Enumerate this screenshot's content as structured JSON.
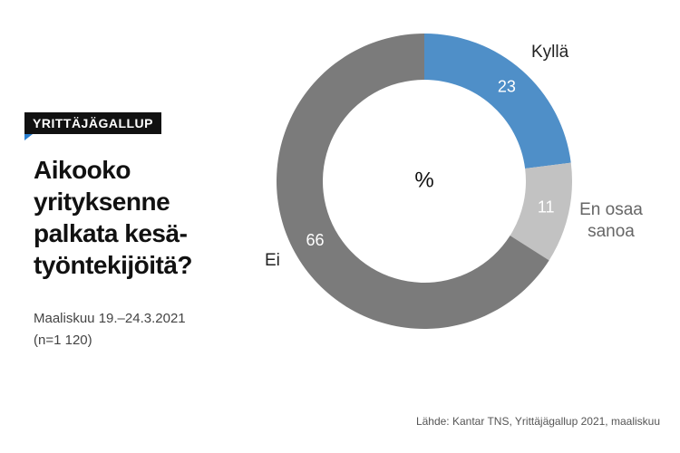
{
  "badge": "YRITTÄJÄGALLUP",
  "title_lines": [
    "Aikooko",
    "yrityksenne",
    "palkata kesä-",
    "työntekijöitä?"
  ],
  "subtitle_lines": [
    "Maaliskuu 19.–24.3.2021",
    "(n=1 120)"
  ],
  "source": "Lähde: Kantar TNS, Yrittäjägallup 2021, maaliskuu",
  "chart_data": {
    "type": "donut",
    "center_label": "%",
    "categories": [
      "Kyllä",
      "En osaa sanoa",
      "Ei"
    ],
    "values": [
      23,
      11,
      66
    ],
    "colors": [
      "#4f8fc8",
      "#c2c2c2",
      "#7b7b7b"
    ],
    "value_label_colors": [
      "#ffffff",
      "#ffffff",
      "#ffffff"
    ]
  }
}
